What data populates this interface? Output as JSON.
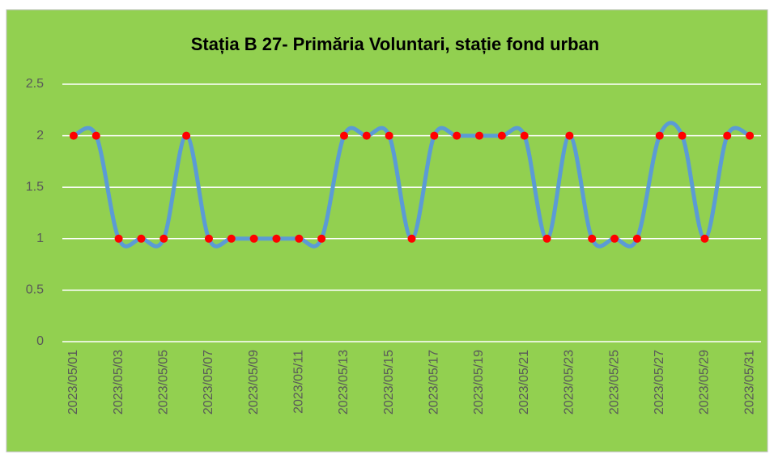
{
  "chart_data": {
    "type": "line",
    "title": "Stația B 27-  Primăria Voluntari, stație fond urban",
    "categories": [
      "2023/05/01",
      null,
      "2023/05/03",
      null,
      "2023/05/05",
      null,
      "2023/05/07",
      null,
      "2023/05/09",
      null,
      "2023/05/11",
      null,
      "2023/05/13",
      null,
      "2023/05/15",
      null,
      "2023/05/17",
      null,
      "2023/05/19",
      null,
      "2023/05/21",
      null,
      "2023/05/23",
      null,
      "2023/05/25",
      null,
      "2023/05/27",
      null,
      "2023/05/29",
      null,
      "2023/05/31"
    ],
    "values": [
      2,
      2,
      1,
      1,
      1,
      2,
      1,
      1,
      1,
      1,
      1,
      1,
      2,
      2,
      2,
      1,
      2,
      2,
      2,
      2,
      2,
      1,
      2,
      1,
      1,
      1,
      2,
      2,
      1,
      2,
      2
    ],
    "color": "#5b9bd5",
    "marker_color": "#ff0000",
    "smooth": true,
    "ylim": [
      0,
      2.5
    ],
    "yticks": [
      0,
      0.5,
      1,
      1.5,
      2,
      2.5
    ],
    "grid": true
  }
}
